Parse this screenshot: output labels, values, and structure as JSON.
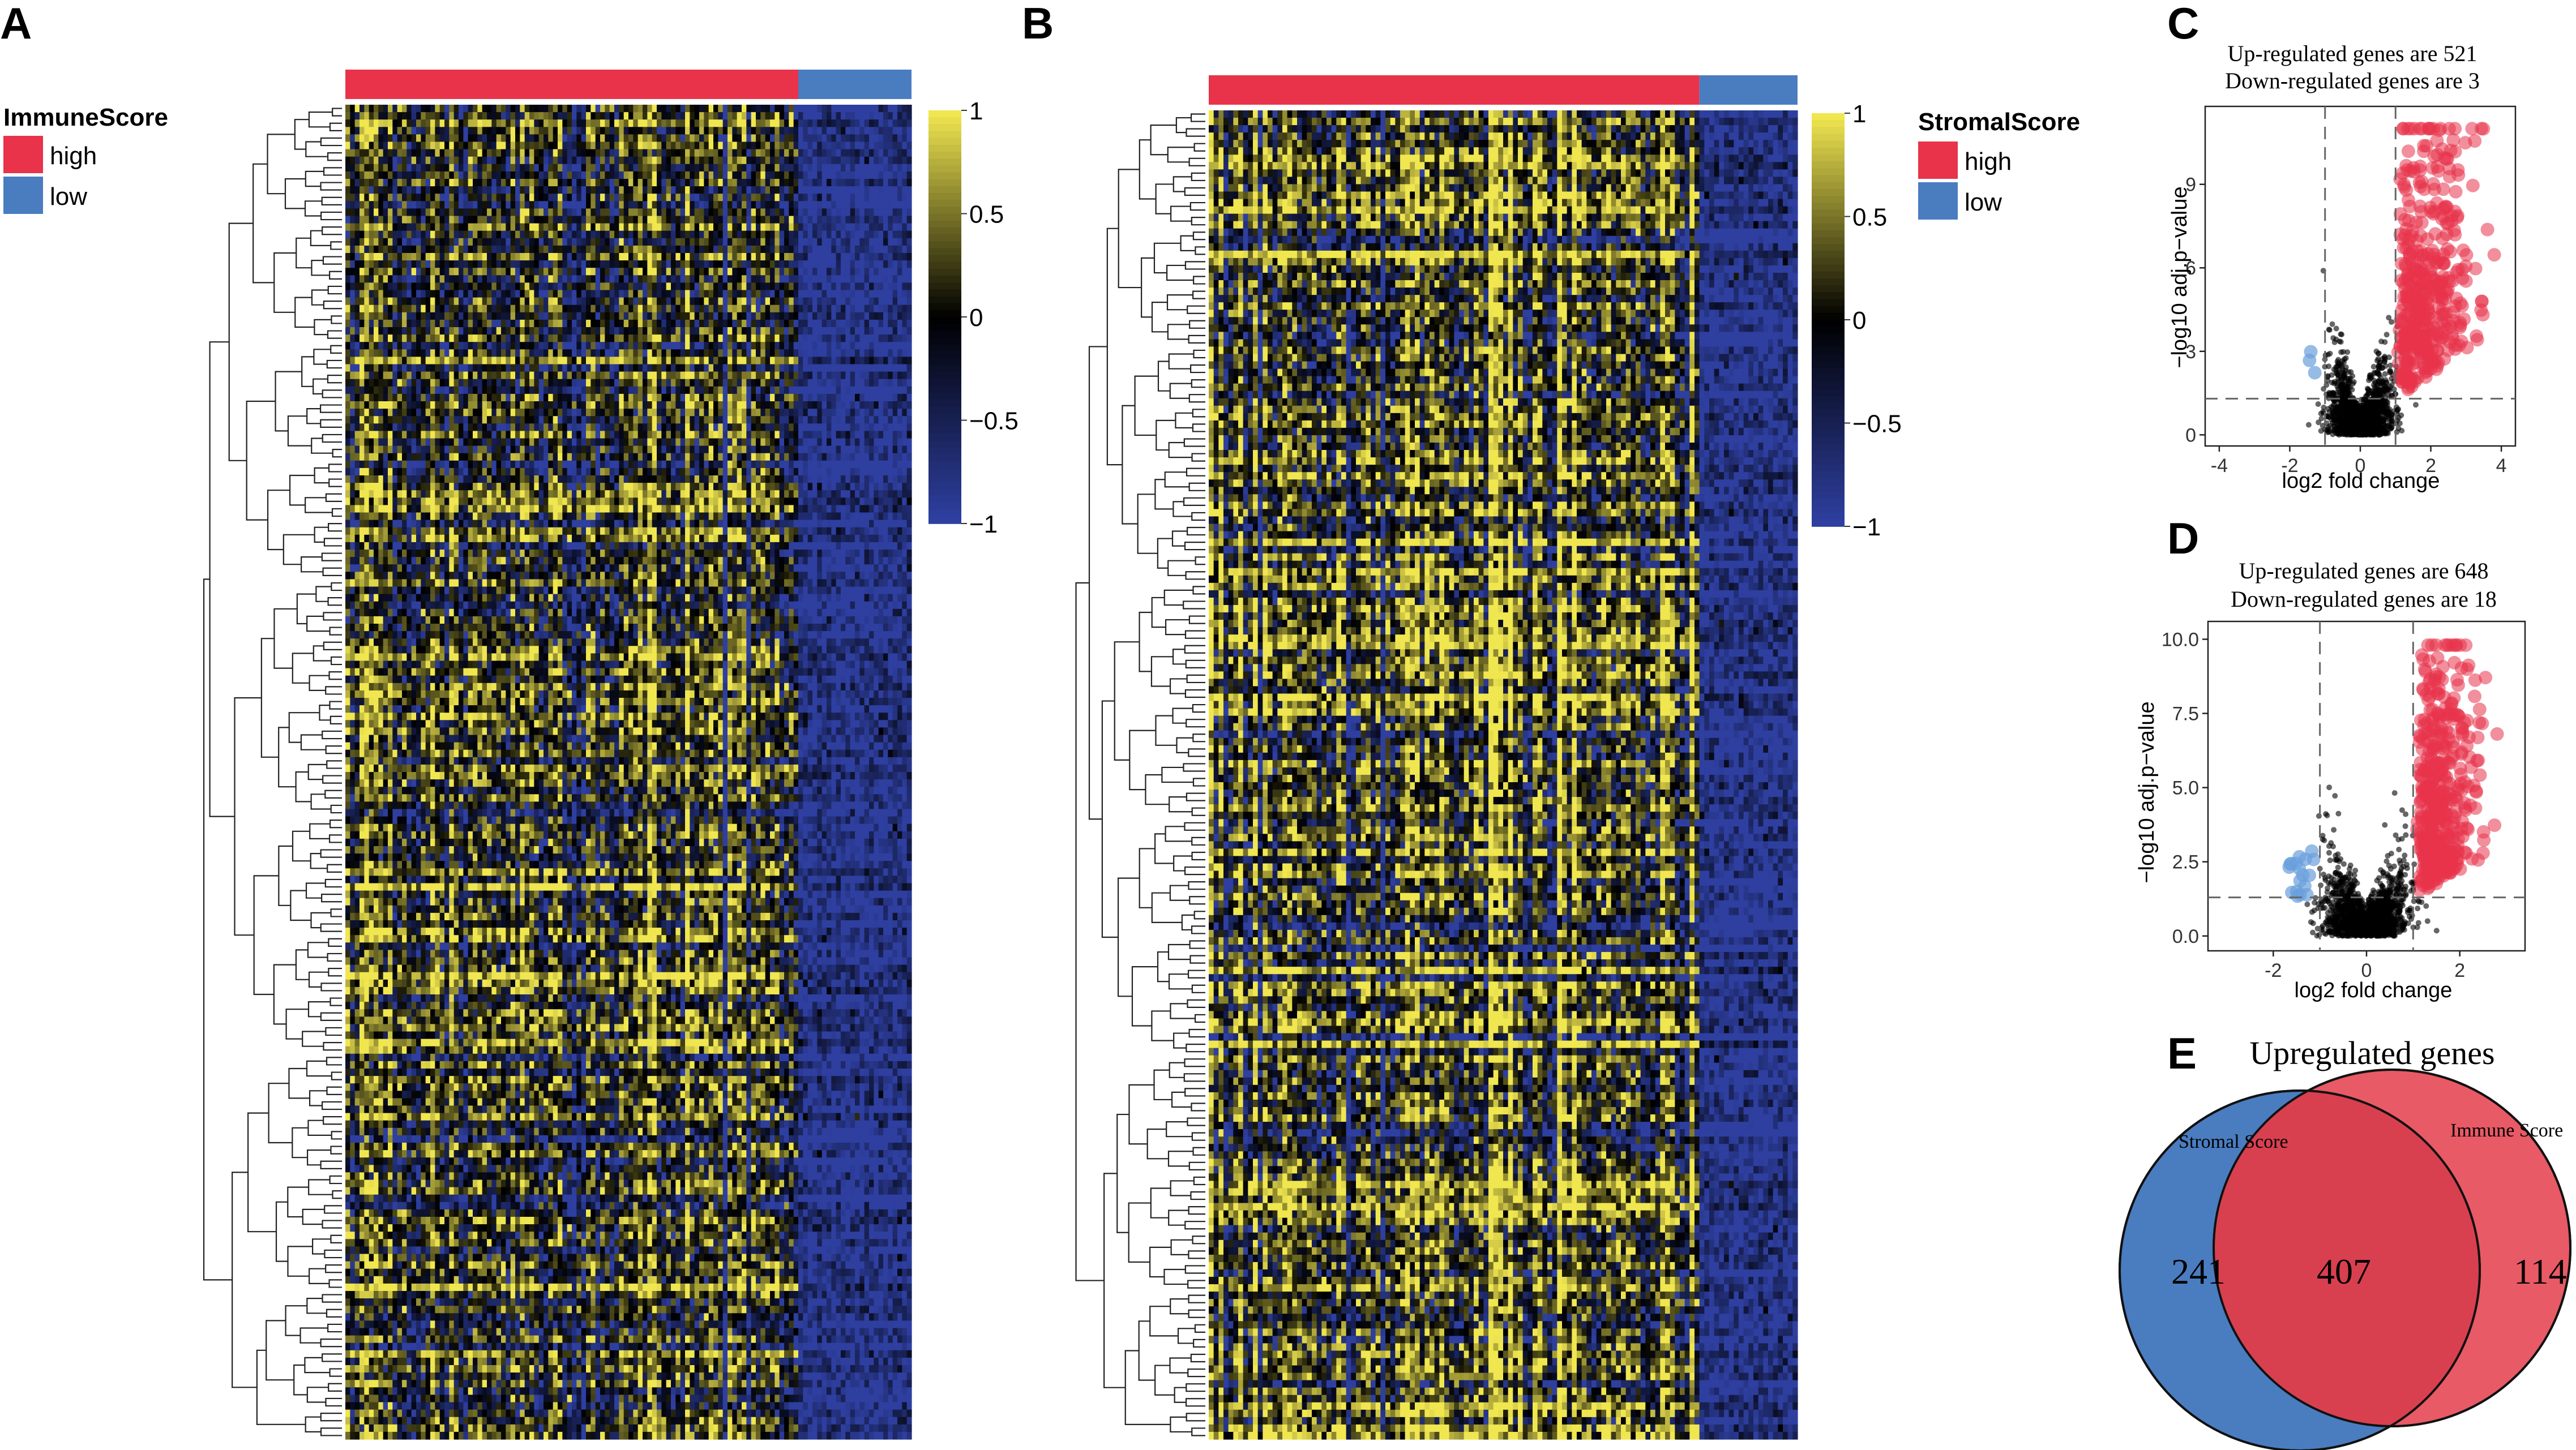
{
  "chart_data": [
    {
      "panel": "A",
      "type": "heatmap",
      "legend": {
        "title": "ImmuneScore",
        "items": [
          {
            "label": "high",
            "color": "#e8334a"
          },
          {
            "label": "low",
            "color": "#4a7cc0"
          }
        ]
      },
      "colorbar": {
        "ticks": [
          "1",
          "0.5",
          "0",
          "−0.5",
          "−1"
        ],
        "range": [
          -1,
          1
        ],
        "colors": {
          "high": "#f0e650",
          "mid": "#000000",
          "low": "#2e3fa0"
        }
      },
      "groups": {
        "high_fraction": 0.8,
        "low_fraction": 0.2
      }
    },
    {
      "panel": "B",
      "type": "heatmap",
      "legend": {
        "title": "StromalScore",
        "items": [
          {
            "label": "high",
            "color": "#e8334a"
          },
          {
            "label": "low",
            "color": "#4a7cc0"
          }
        ]
      },
      "colorbar": {
        "ticks": [
          "1",
          "0.5",
          "0",
          "−0.5",
          "−1"
        ],
        "range": [
          -1,
          1
        ],
        "colors": {
          "high": "#f0e650",
          "mid": "#000000",
          "low": "#2e3fa0"
        }
      },
      "groups": {
        "high_fraction": 0.83,
        "low_fraction": 0.17
      }
    },
    {
      "panel": "C",
      "type": "scatter",
      "title_lines": [
        "Up-regulated genes are 521",
        "Down-regulated genes are 3"
      ],
      "xlabel": "log2 fold change",
      "ylabel": "−log10 adj.p−value",
      "xlim": [
        -4.4,
        4.4
      ],
      "ylim": [
        -0.4,
        11.8
      ],
      "xticks": [
        -4,
        -2,
        0,
        2,
        4
      ],
      "yticks": [
        0,
        3,
        6,
        9
      ],
      "thresholds": {
        "x": [
          -1,
          1
        ],
        "y": 1.3
      },
      "up_count": 521,
      "down_count": 3,
      "up_color": "#e8334a",
      "down_color": "#6a9fdc",
      "ns_color": "#000000"
    },
    {
      "panel": "D",
      "type": "scatter",
      "title_lines": [
        "Up-regulated genes are 648",
        "Down-regulated genes are 18"
      ],
      "xlabel": "log2 fold change",
      "ylabel": "−log10 adj.p−value",
      "xlim": [
        -3.4,
        3.4
      ],
      "ylim": [
        -0.5,
        10.6
      ],
      "xticks": [
        -2,
        0,
        2
      ],
      "ytick_labels": [
        "0.0",
        "2.5",
        "5.0",
        "7.5",
        "10.0"
      ],
      "yticks": [
        0,
        2.5,
        5,
        7.5,
        10
      ],
      "thresholds": {
        "x": [
          -1,
          1
        ],
        "y": 1.3
      },
      "up_count": 648,
      "down_count": 18,
      "up_color": "#e8334a",
      "down_color": "#6a9fdc",
      "ns_color": "#000000"
    },
    {
      "panel": "E",
      "type": "venn",
      "title": "Upregulated genes",
      "sets": [
        {
          "name": "Stromal Score",
          "only": 241,
          "color": "#4a7cc0"
        },
        {
          "name": "Immune Score",
          "only": 114,
          "color": "#e85a66"
        }
      ],
      "intersection": 407,
      "intersection_color": "#d9404f"
    }
  ]
}
